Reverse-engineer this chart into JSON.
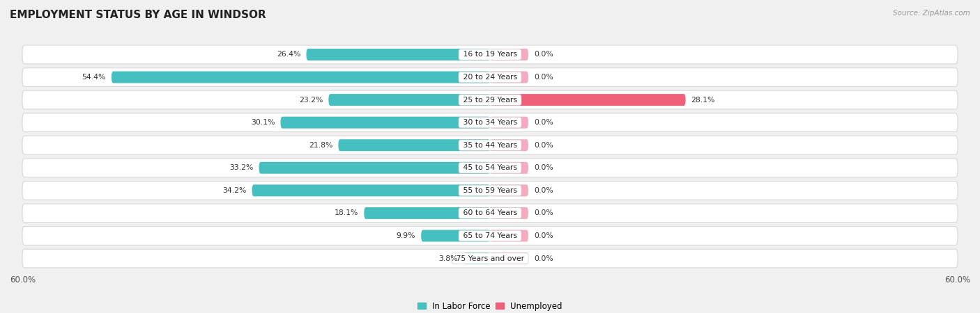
{
  "title": "EMPLOYMENT STATUS BY AGE IN WINDSOR",
  "source": "Source: ZipAtlas.com",
  "categories": [
    "16 to 19 Years",
    "20 to 24 Years",
    "25 to 29 Years",
    "30 to 34 Years",
    "35 to 44 Years",
    "45 to 54 Years",
    "55 to 59 Years",
    "60 to 64 Years",
    "65 to 74 Years",
    "75 Years and over"
  ],
  "labor_force": [
    26.4,
    54.4,
    23.2,
    30.1,
    21.8,
    33.2,
    34.2,
    18.1,
    9.9,
    3.8
  ],
  "unemployed": [
    0.0,
    0.0,
    28.1,
    0.0,
    0.0,
    0.0,
    0.0,
    0.0,
    0.0,
    0.0
  ],
  "labor_force_color": "#45bfbf",
  "unemployed_color_bright": "#f0607a",
  "unemployed_color_light": "#f5aabe",
  "axis_max": 60.0,
  "page_bg": "#f0f0f0",
  "row_bg": "#ffffff",
  "row_border": "#d8d8d8",
  "title_fontsize": 11,
  "bar_height": 0.52,
  "unemp_stub": 5.5,
  "legend_labels": [
    "In Labor Force",
    "Unemployed"
  ]
}
